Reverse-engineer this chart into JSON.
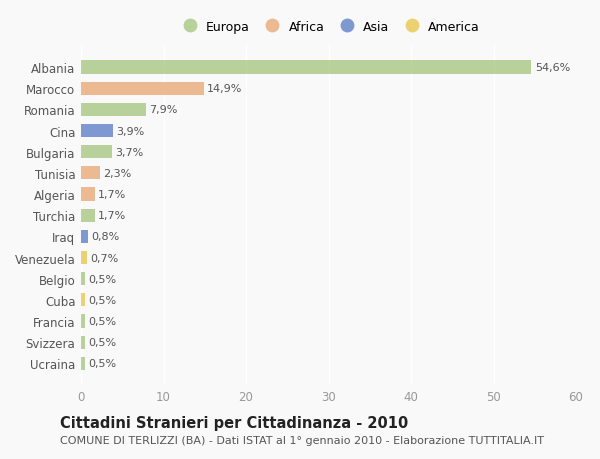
{
  "countries": [
    "Albania",
    "Marocco",
    "Romania",
    "Cina",
    "Bulgaria",
    "Tunisia",
    "Algeria",
    "Turchia",
    "Iraq",
    "Venezuela",
    "Belgio",
    "Cuba",
    "Francia",
    "Svizzera",
    "Ucraina"
  ],
  "values": [
    54.6,
    14.9,
    7.9,
    3.9,
    3.7,
    2.3,
    1.7,
    1.7,
    0.8,
    0.7,
    0.5,
    0.5,
    0.5,
    0.5,
    0.5
  ],
  "labels": [
    "54,6%",
    "14,9%",
    "7,9%",
    "3,9%",
    "3,7%",
    "2,3%",
    "1,7%",
    "1,7%",
    "0,8%",
    "0,7%",
    "0,5%",
    "0,5%",
    "0,5%",
    "0,5%",
    "0,5%"
  ],
  "continents": [
    "Europa",
    "Africa",
    "Europa",
    "Asia",
    "Europa",
    "Africa",
    "Africa",
    "Europa",
    "Asia",
    "America",
    "Europa",
    "America",
    "Europa",
    "Europa",
    "Europa"
  ],
  "continent_colors": {
    "Europa": "#a8c882",
    "Africa": "#e8aa78",
    "Asia": "#6080c8",
    "America": "#e8c850"
  },
  "legend_order": [
    "Europa",
    "Africa",
    "Asia",
    "America"
  ],
  "title": "Cittadini Stranieri per Cittadinanza - 2010",
  "subtitle": "COMUNE DI TERLIZZI (BA) - Dati ISTAT al 1° gennaio 2010 - Elaborazione TUTTITALIA.IT",
  "xlim": [
    0,
    60
  ],
  "xticks": [
    0,
    10,
    20,
    30,
    40,
    50,
    60
  ],
  "background_color": "#f9f9f9",
  "bar_alpha": 0.8,
  "title_fontsize": 10.5,
  "subtitle_fontsize": 8,
  "tick_fontsize": 8.5,
  "label_fontsize": 8,
  "legend_fontsize": 9
}
